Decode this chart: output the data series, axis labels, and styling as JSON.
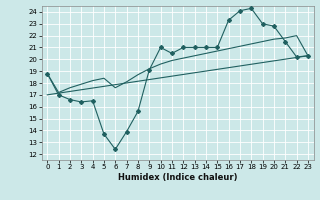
{
  "xlabel": "Humidex (Indice chaleur)",
  "ylabel": "",
  "bg_color": "#cce8e8",
  "grid_color": "#ffffff",
  "line_color": "#206060",
  "xlim": [
    -0.5,
    23.5
  ],
  "ylim": [
    11.5,
    24.5
  ],
  "xticks": [
    0,
    1,
    2,
    3,
    4,
    5,
    6,
    7,
    8,
    9,
    10,
    11,
    12,
    13,
    14,
    15,
    16,
    17,
    18,
    19,
    20,
    21,
    22,
    23
  ],
  "yticks": [
    12,
    13,
    14,
    15,
    16,
    17,
    18,
    19,
    20,
    21,
    22,
    23,
    24
  ],
  "line1_x": [
    0,
    1,
    2,
    3,
    4,
    5,
    6,
    7,
    8,
    9,
    10,
    11,
    12,
    13,
    14,
    15,
    16,
    17,
    18,
    19,
    20,
    21,
    22,
    23
  ],
  "line1_y": [
    18.8,
    17.0,
    16.6,
    16.4,
    16.5,
    13.7,
    12.4,
    13.9,
    15.6,
    19.1,
    21.0,
    20.5,
    21.0,
    21.0,
    21.0,
    21.0,
    23.3,
    24.1,
    24.3,
    23.0,
    22.8,
    21.5,
    20.2,
    20.3
  ],
  "line2_x": [
    0,
    1,
    2,
    3,
    4,
    5,
    6,
    7,
    8,
    9,
    10,
    11,
    12,
    13,
    14,
    15,
    16,
    17,
    18,
    19,
    20,
    21,
    22,
    23
  ],
  "line2_y": [
    18.8,
    17.2,
    17.6,
    17.9,
    18.2,
    18.4,
    17.6,
    18.1,
    18.7,
    19.2,
    19.6,
    19.9,
    20.1,
    20.3,
    20.5,
    20.7,
    20.9,
    21.1,
    21.3,
    21.5,
    21.7,
    21.8,
    22.0,
    20.3
  ],
  "line3_x": [
    0,
    23
  ],
  "line3_y": [
    17.0,
    20.3
  ],
  "xlabel_fontsize": 6.0,
  "tick_fontsize": 5.0
}
